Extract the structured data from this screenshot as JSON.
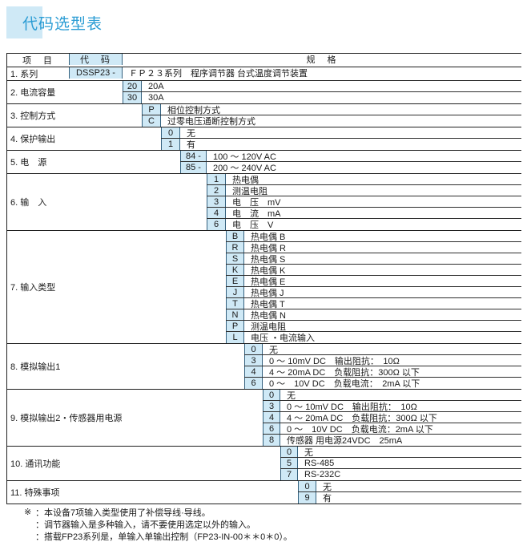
{
  "title": "代码选型表",
  "colors": {
    "accent_blue_fill": "#cfe9f6",
    "title_blue": "#2a9cd4",
    "table_border_dark": "#1f1f1f",
    "code_cell_border": "#33607e"
  },
  "table": {
    "header": {
      "item": "项　目",
      "code": "代　码",
      "spec": "规　格"
    },
    "groups": [
      {
        "item": "1. 系列",
        "options": [
          {
            "code": "DSSP23 -",
            "spec": "ＦＰ２３系列　程序调节器 台式温度调节装置"
          }
        ]
      },
      {
        "item": "2. 电流容量",
        "options": [
          {
            "code": "20",
            "spec": "20A"
          },
          {
            "code": "30",
            "spec": "30A"
          }
        ]
      },
      {
        "item": "3. 控制方式",
        "options": [
          {
            "code": "P",
            "spec": "相位控制方式"
          },
          {
            "code": "C",
            "spec": "过零电压通断控制方式"
          }
        ]
      },
      {
        "item": "4. 保护输出",
        "options": [
          {
            "code": "0",
            "spec": "无"
          },
          {
            "code": "1",
            "spec": "有"
          }
        ]
      },
      {
        "item": "5. 电　源",
        "options": [
          {
            "code": "84 -",
            "spec": "100 ～ 120V AC"
          },
          {
            "code": "85 -",
            "spec": "200 ～ 240V AC"
          }
        ]
      },
      {
        "item": "6. 输　入",
        "options": [
          {
            "code": "1",
            "spec": "热电偶"
          },
          {
            "code": "2",
            "spec": "测温电阻"
          },
          {
            "code": "3",
            "spec": "电　压　mV"
          },
          {
            "code": "4",
            "spec": "电　流　mA"
          },
          {
            "code": "6",
            "spec": "电　压　V"
          }
        ]
      },
      {
        "item": "7. 输入类型",
        "options": [
          {
            "code": "B",
            "spec": "热电偶 B"
          },
          {
            "code": "R",
            "spec": "热电偶 R"
          },
          {
            "code": "S",
            "spec": "热电偶 S"
          },
          {
            "code": "K",
            "spec": "热电偶 K"
          },
          {
            "code": "E",
            "spec": "热电偶 E"
          },
          {
            "code": "J",
            "spec": "热电偶 J"
          },
          {
            "code": "T",
            "spec": "热电偶 T"
          },
          {
            "code": "N",
            "spec": "热电偶 N"
          },
          {
            "code": "P",
            "spec": "测温电阻"
          },
          {
            "code": "L",
            "spec": "电压 ・电流输入"
          }
        ]
      },
      {
        "item": "8.  模拟输出1",
        "options": [
          {
            "code": "0",
            "spec": "无"
          },
          {
            "code": "3",
            "spec": "0 ～ 10mV DC　输出阻抗：　10Ω"
          },
          {
            "code": "4",
            "spec": "4 ～ 20mA DC　负载阻抗：300Ω 以下"
          },
          {
            "code": "6",
            "spec": "0 ～　10V DC　负载电流：　2mA 以下"
          }
        ]
      },
      {
        "item": "9.  模拟输出2・传感器用电源",
        "options": [
          {
            "code": "0",
            "spec": "无"
          },
          {
            "code": "3",
            "spec": "0 ～ 10mV DC　输出阻抗：　10Ω"
          },
          {
            "code": "4",
            "spec": "4 ～ 20mA DC　负载阻抗：300Ω 以下"
          },
          {
            "code": "6",
            "spec": "0 ～　10V DC　负载电流：2mA 以下"
          },
          {
            "code": "8",
            "spec": "传感器 用电源24VDC　25mA"
          }
        ]
      },
      {
        "item": "10.  通讯功能",
        "options": [
          {
            "code": "0",
            "spec": "无"
          },
          {
            "code": "5",
            "spec": "RS-485"
          },
          {
            "code": "7",
            "spec": "RS-232C"
          }
        ]
      },
      {
        "item": "11.  特殊事项",
        "options": [
          {
            "code": "0",
            "spec": "无"
          },
          {
            "code": "9",
            "spec": "有"
          }
        ]
      }
    ]
  },
  "notes": [
    {
      "marker": "※",
      "text": "：本设备7项输入类型使用了补偿导线·导线。"
    },
    {
      "marker": "",
      "text": "：调节器输入是多种输入，请不要使用选定以外的输入。"
    },
    {
      "marker": "",
      "text": "：搭载FP23系列是，单输入单输出控制（FP23-IN-00＊＊0＊0）。"
    }
  ]
}
